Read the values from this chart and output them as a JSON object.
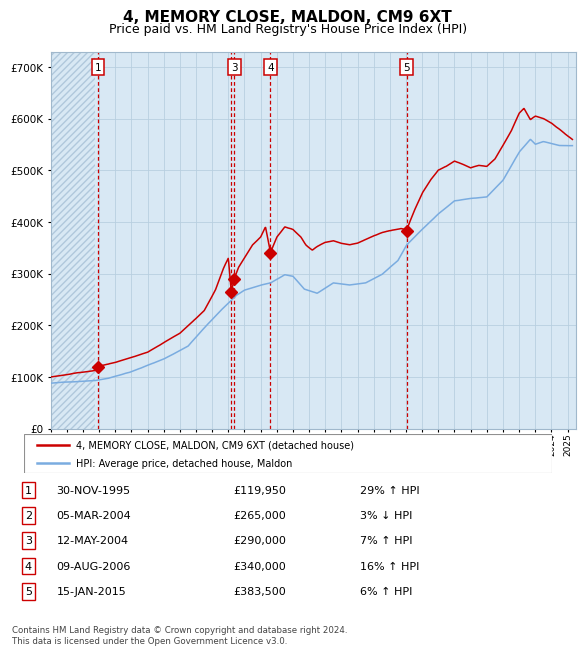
{
  "title": "4, MEMORY CLOSE, MALDON, CM9 6XT",
  "subtitle": "Price paid vs. HM Land Registry's House Price Index (HPI)",
  "title_fontsize": 11,
  "subtitle_fontsize": 9,
  "ylabel_values": [
    0,
    100000,
    200000,
    300000,
    400000,
    500000,
    600000,
    700000
  ],
  "ylabel_labels": [
    "£0",
    "£100K",
    "£200K",
    "£300K",
    "£400K",
    "£500K",
    "£600K",
    "£700K"
  ],
  "xlim_start": 1993.0,
  "xlim_end": 2025.5,
  "ylim": [
    0,
    730000
  ],
  "hpi_color": "#7aace0",
  "price_color": "#cc0000",
  "sale_marker_color": "#cc0000",
  "dashed_line_color": "#cc0000",
  "background_color": "#d8e8f4",
  "hatched_region_end": 1995.75,
  "sale_dates_decimal": [
    1995.917,
    2004.18,
    2004.37,
    2006.61,
    2015.04
  ],
  "sale_prices": [
    119950,
    265000,
    290000,
    340000,
    383500
  ],
  "sale_labels": [
    "1",
    "2",
    "3",
    "4",
    "5"
  ],
  "shown_label_indices": [
    0,
    2,
    3,
    4
  ],
  "legend_line1": "4, MEMORY CLOSE, MALDON, CM9 6XT (detached house)",
  "legend_line2": "HPI: Average price, detached house, Maldon",
  "table_rows": [
    [
      "1",
      "30-NOV-1995",
      "£119,950",
      "29% ↑ HPI"
    ],
    [
      "2",
      "05-MAR-2004",
      "£265,000",
      "3% ↓ HPI"
    ],
    [
      "3",
      "12-MAY-2004",
      "£290,000",
      "7% ↑ HPI"
    ],
    [
      "4",
      "09-AUG-2006",
      "£340,000",
      "16% ↑ HPI"
    ],
    [
      "5",
      "15-JAN-2015",
      "£383,500",
      "6% ↑ HPI"
    ]
  ],
  "footnote": "Contains HM Land Registry data © Crown copyright and database right 2024.\nThis data is licensed under the Open Government Licence v3.0.",
  "grid_color": "#b8cfe0",
  "hatch_color": "#b0c8dc"
}
